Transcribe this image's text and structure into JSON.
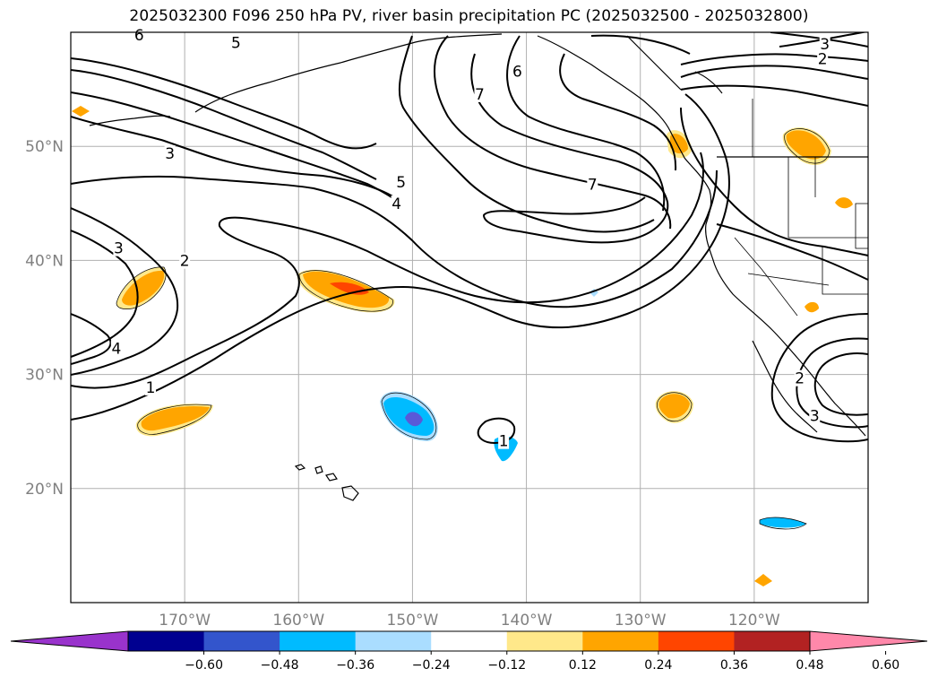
{
  "title": "2025032300 F096 250 hPa PV, river basin precipitation PC (2025032500 - 2025032800)",
  "map": {
    "lon_range": [
      -180,
      -110
    ],
    "lat_range": [
      10,
      60
    ],
    "lon_ticks": [
      {
        "value": -170,
        "label": "170°W"
      },
      {
        "value": -160,
        "label": "160°W"
      },
      {
        "value": -150,
        "label": "150°W"
      },
      {
        "value": -140,
        "label": "140°W"
      },
      {
        "value": -130,
        "label": "130°W"
      },
      {
        "value": -120,
        "label": "120°W"
      }
    ],
    "lat_ticks": [
      {
        "value": 50,
        "label": "50°N"
      },
      {
        "value": 40,
        "label": "40°N"
      },
      {
        "value": 30,
        "label": "30°N"
      },
      {
        "value": 20,
        "label": "20°N"
      }
    ],
    "grid": true,
    "contour_labels": [
      {
        "text": "5",
        "lon": -165.5,
        "lat": 59.0
      },
      {
        "text": "6",
        "lon": -174.0,
        "lat": 59.7
      },
      {
        "text": "6",
        "lon": -140.8,
        "lat": 56.5
      },
      {
        "text": "7",
        "lon": -144.1,
        "lat": 54.5
      },
      {
        "text": "3",
        "lon": -171.3,
        "lat": 49.3
      },
      {
        "text": "5",
        "lon": -151.0,
        "lat": 46.8
      },
      {
        "text": "4",
        "lon": -151.4,
        "lat": 44.9
      },
      {
        "text": "7",
        "lon": -134.2,
        "lat": 46.6
      },
      {
        "text": "3",
        "lon": -175.8,
        "lat": 41.0
      },
      {
        "text": "2",
        "lon": -170.0,
        "lat": 39.9
      },
      {
        "text": "4",
        "lon": -176.0,
        "lat": 32.2
      },
      {
        "text": "1",
        "lon": -173.0,
        "lat": 28.8
      },
      {
        "text": "3",
        "lon": -113.8,
        "lat": 58.9
      },
      {
        "text": "2",
        "lon": -114.0,
        "lat": 57.6
      },
      {
        "text": "2",
        "lon": -116.0,
        "lat": 29.6
      },
      {
        "text": "3",
        "lon": -114.7,
        "lat": 26.3
      },
      {
        "text": "1",
        "lon": -142.0,
        "lat": 24.1
      }
    ]
  },
  "colorbar": {
    "colors": [
      "#9933cc",
      "#000090",
      "#3355cc",
      "#00bbff",
      "#aaddff",
      "#ffffff",
      "#ffe88a",
      "#ffa500",
      "#ff4500",
      "#b22222",
      "#ff88aa"
    ],
    "labels": [
      "−0.60",
      "−0.48",
      "−0.36",
      "−0.24",
      "−0.12",
      "0.12",
      "0.24",
      "0.36",
      "0.48",
      "0.60"
    ]
  }
}
